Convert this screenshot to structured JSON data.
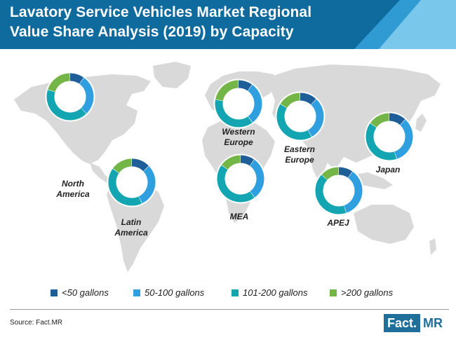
{
  "title": {
    "line1": "Lavatory Service Vehicles Market Regional",
    "line2": "Value Share Analysis (2019) by Capacity"
  },
  "colors": {
    "banner": "#0f6b9e",
    "banner_stripe_1": "#2f9bd2",
    "banner_stripe_2": "#79c7ea",
    "map_land": "#d9d9d9",
    "lt50": "#1f5f99",
    "50_100": "#2f9fe0",
    "101_200": "#13a6b2",
    "gt200": "#74b548"
  },
  "chart_data": {
    "type": "pie",
    "variant": "donut-multiple",
    "categories": [
      "<50 gallons",
      "50-100 gallons",
      "101-200 gallons",
      ">200 gallons"
    ],
    "series": [
      {
        "name": "North America",
        "values": [
          10,
          28,
          42,
          20
        ]
      },
      {
        "name": "Western Europe",
        "values": [
          10,
          30,
          38,
          22
        ]
      },
      {
        "name": "Eastern Europe",
        "values": [
          12,
          30,
          42,
          16
        ]
      },
      {
        "name": "Japan",
        "values": [
          12,
          33,
          40,
          15
        ]
      },
      {
        "name": "Latin America",
        "values": [
          13,
          30,
          42,
          15
        ]
      },
      {
        "name": "MEA",
        "values": [
          10,
          30,
          45,
          15
        ]
      },
      {
        "name": "APEJ",
        "values": [
          10,
          35,
          42,
          13
        ]
      }
    ],
    "legend_position": "bottom",
    "region_labels": [
      [
        "North",
        "America"
      ],
      [
        "Western",
        "Europe"
      ],
      [
        "Eastern",
        "Europe"
      ],
      [
        "Japan"
      ],
      [
        "Latin",
        "America"
      ],
      [
        "MEA"
      ],
      [
        "APEJ"
      ]
    ]
  },
  "legend": {
    "lt50": "<50 gallons",
    "50_100": "50-100 gallons",
    "101_200": "101-200 gallons",
    "gt200": ">200 gallons"
  },
  "footer": {
    "source": "Source: Fact.MR",
    "brand_fact": "Fact.",
    "brand_mr": "MR"
  }
}
